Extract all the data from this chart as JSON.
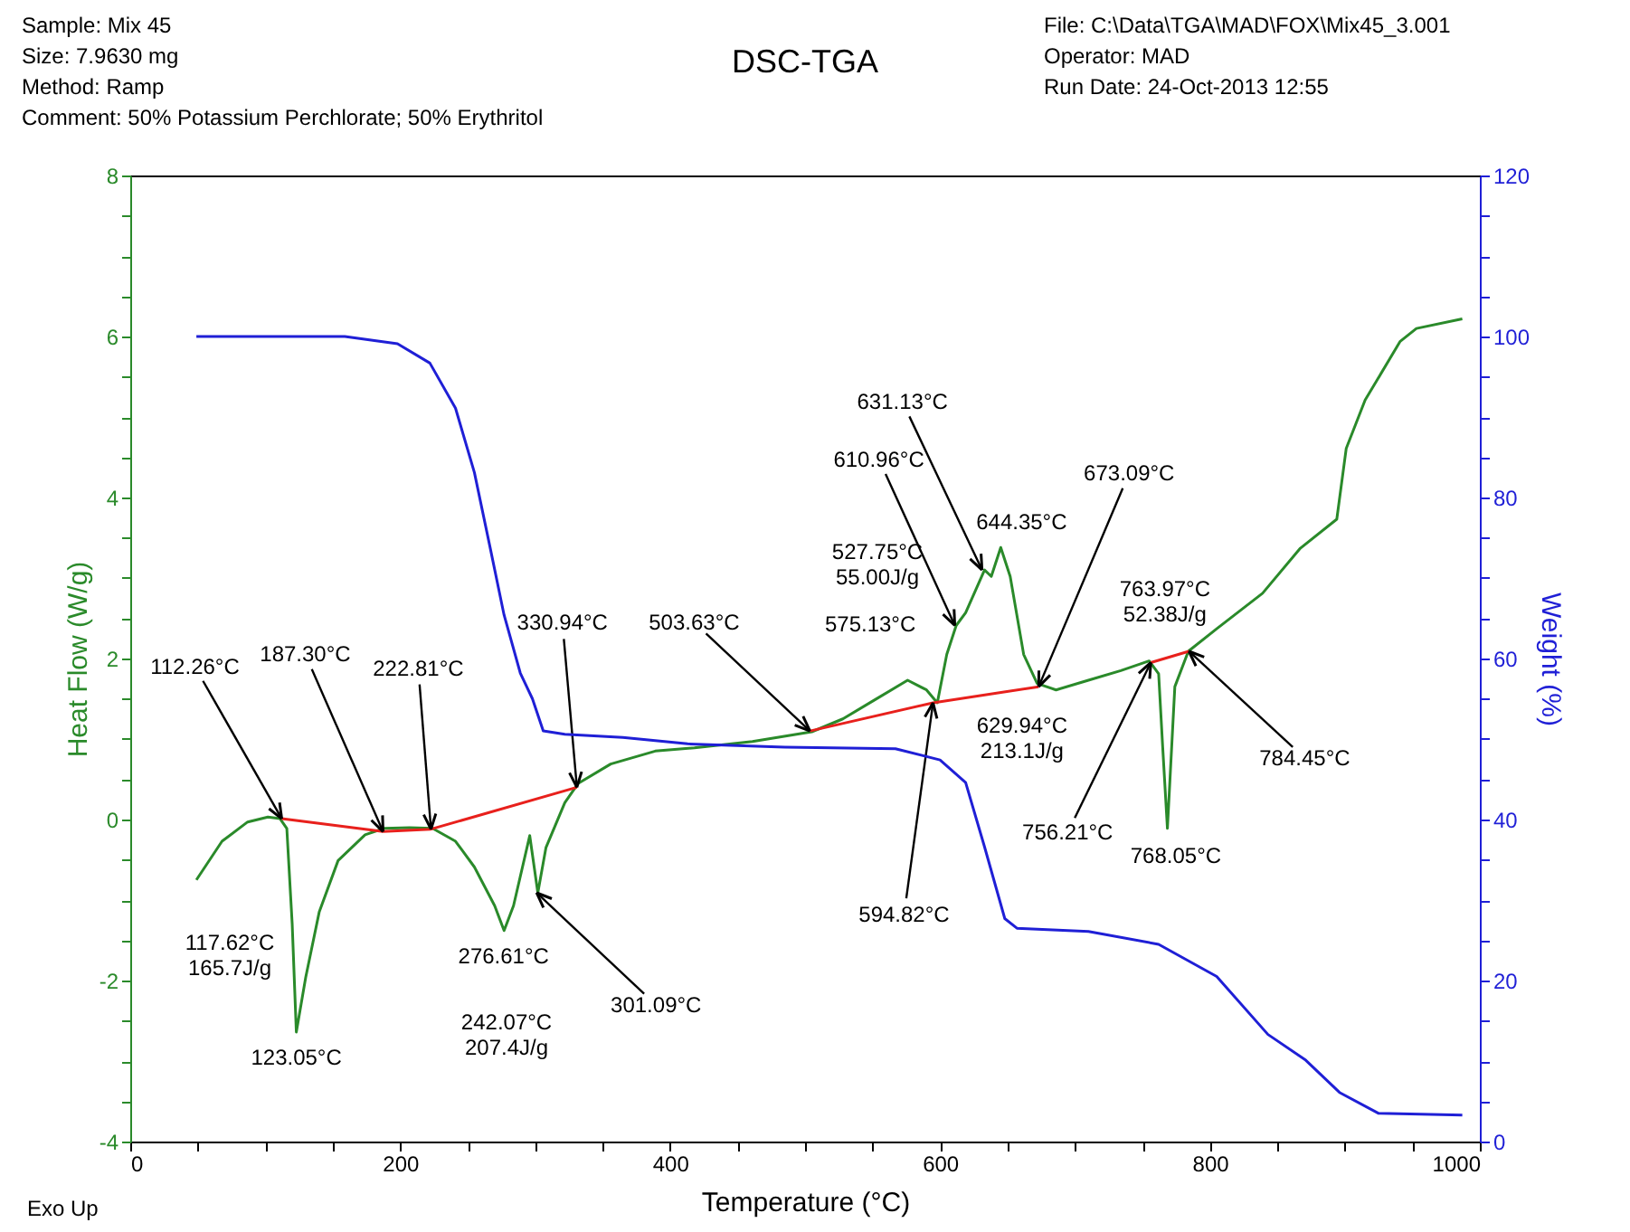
{
  "chart_data": {
    "type": "line",
    "title": "DSC-TGA",
    "xlabel": "Temperature (°C)",
    "ylabel": "Heat Flow (W/g)",
    "y2label": "Weight (%)",
    "xlim": [
      0,
      1000
    ],
    "ylim": [
      -4,
      8
    ],
    "y2lim": [
      0,
      120
    ],
    "xticks": [
      0,
      {
        "value": 50,
        "label": null
      },
      {
        "value": 100,
        "label": null
      },
      {
        "value": 150,
        "label": null
      },
      200,
      {
        "value": 250,
        "label": null
      },
      {
        "value": 300,
        "label": null
      },
      {
        "value": 350,
        "label": null
      },
      400,
      {
        "value": 450,
        "label": null
      },
      {
        "value": 500,
        "label": null
      },
      {
        "value": 550,
        "label": null
      },
      600,
      {
        "value": 650,
        "label": null
      },
      {
        "value": 700,
        "label": null
      },
      {
        "value": 750,
        "label": null
      },
      800,
      {
        "value": 850,
        "label": null
      },
      {
        "value": 900,
        "label": null
      },
      {
        "value": 950,
        "label": null
      },
      1000
    ],
    "yticks": [
      -4,
      {
        "value": -3.5,
        "label": null
      },
      {
        "value": -3,
        "label": null
      },
      {
        "value": -2.5,
        "label": null
      },
      -2,
      {
        "value": -1.5,
        "label": null
      },
      {
        "value": -1,
        "label": null
      },
      {
        "value": -0.5,
        "label": null
      },
      0,
      {
        "value": 0.5,
        "label": null
      },
      {
        "value": 1,
        "label": null
      },
      {
        "value": 1.5,
        "label": null
      },
      2,
      {
        "value": 2.5,
        "label": null
      },
      {
        "value": 3,
        "label": null
      },
      {
        "value": 3.5,
        "label": null
      },
      4,
      {
        "value": 4.5,
        "label": null
      },
      {
        "value": 5,
        "label": null
      },
      {
        "value": 5.5,
        "label": null
      },
      6,
      {
        "value": 6.5,
        "label": null
      },
      {
        "value": 7,
        "label": null
      },
      {
        "value": 7.5,
        "label": null
      },
      8
    ],
    "y2ticks": [
      0,
      {
        "value": 5,
        "label": null
      },
      {
        "value": 10,
        "label": null
      },
      {
        "value": 15,
        "label": null
      },
      20,
      {
        "value": 25,
        "label": null
      },
      {
        "value": 30,
        "label": null
      },
      {
        "value": 35,
        "label": null
      },
      40,
      {
        "value": 45,
        "label": null
      },
      {
        "value": 50,
        "label": null
      },
      {
        "value": 55,
        "label": null
      },
      60,
      {
        "value": 65,
        "label": null
      },
      {
        "value": 70,
        "label": null
      },
      {
        "value": 75,
        "label": null
      },
      80,
      {
        "value": 85,
        "label": null
      },
      {
        "value": 90,
        "label": null
      },
      {
        "value": 95,
        "label": null
      },
      100,
      {
        "value": 105,
        "label": null
      },
      {
        "value": 110,
        "label": null
      },
      {
        "value": 115,
        "label": null
      },
      120
    ],
    "grid": false,
    "marker": "none",
    "line_style": "solid",
    "series": [
      {
        "color": "#2a8a2a",
        "x": [
          49,
          68,
          87,
          102,
          111,
          116,
          120,
          123.05,
          130,
          140,
          154,
          174,
          188,
          207,
          224,
          241,
          255,
          270,
          277,
          284,
          296,
          302,
          308,
          322,
          332,
          356,
          389,
          418,
          461,
          505,
          528,
          552,
          576,
          590,
          598,
          605,
          612,
          619,
          633,
          638,
          645,
          652,
          662,
          672,
          686,
          710,
          734,
          755,
          762,
          765,
          768.5,
          774,
          784,
          805,
          839,
          867,
          894,
          901,
          915,
          941,
          953,
          987
        ],
        "values": [
          -0.75,
          -0.27,
          -0.03,
          0.03,
          0.01,
          -0.11,
          -1.3,
          -2.64,
          -1.96,
          -1.15,
          -0.51,
          -0.19,
          -0.11,
          -0.1,
          -0.11,
          -0.27,
          -0.59,
          -1.07,
          -1.38,
          -1.07,
          -0.2,
          -0.91,
          -0.35,
          0.21,
          0.45,
          0.69,
          0.85,
          0.89,
          0.97,
          1.09,
          1.25,
          1.49,
          1.73,
          1.61,
          1.45,
          2.05,
          2.41,
          2.57,
          3.1,
          3.02,
          3.38,
          3.02,
          2.05,
          1.69,
          1.61,
          1.73,
          1.85,
          1.97,
          1.81,
          0.9,
          -0.11,
          1.65,
          2.09,
          2.37,
          2.81,
          3.37,
          3.73,
          4.61,
          5.21,
          5.94,
          6.1,
          6.22
        ]
      },
      {
        "color": "#e8201c",
        "x": [
          112.26,
          187.3,
          222.81,
          330.94,
          420,
          503.63,
          594.82,
          673.09,
          720,
          756.21,
          784.45
        ],
        "values": [
          0.01,
          -0.15,
          -0.12,
          0.4,
          null,
          1.1,
          1.45,
          1.65,
          null,
          1.95,
          2.09
        ]
      },
      {
        "color": "#1f1fd6",
        "axis": "y2",
        "x": [
          49,
          159,
          198,
          222,
          241,
          255,
          267,
          277,
          289,
          298,
          306,
          322,
          365,
          413,
          485,
          567,
          600,
          619,
          633,
          648,
          657,
          710,
          762,
          805,
          843,
          871,
          896,
          925,
          987
        ],
        "values": [
          100,
          100,
          99.1,
          96.7,
          91.1,
          83.1,
          73.5,
          65.4,
          58.2,
          55.0,
          51.0,
          50.6,
          50.2,
          49.4,
          49.0,
          48.8,
          47.4,
          44.6,
          36.6,
          27.7,
          26.5,
          26.1,
          24.5,
          20.5,
          13.3,
          10.1,
          6.1,
          3.5,
          3.3
        ]
      }
    ],
    "annotations": [
      "Sample: Mix 45",
      "Size:  7.9630 mg",
      "Method: Ramp",
      "Comment: 50% Potassium Perchlorate; 50% Erythritol",
      "File: C:\\Data\\TGA\\MAD\\FOX\\Mix45_3.001",
      "Operator: MAD",
      "Run Date: 24-Oct-2013 12:55",
      "Exo Up",
      "117.62°C\n165.7J/g",
      "242.07°C\n207.4J/g",
      "527.75°C\n55.00J/g",
      {
        "text": "112.26°C",
        "x": 112.26,
        "y": 0.01
      },
      {
        "text": "187.30°C",
        "x": 187.3,
        "y": -0.15
      },
      {
        "text": "222.81°C",
        "x": 222.81,
        "y": -0.12
      },
      {
        "text": "330.94°C",
        "x": 330.94,
        "y": 0.4
      },
      {
        "text": "503.63°C",
        "x": 503.63,
        "y": 1.1
      },
      {
        "text": "123.05°C",
        "x": 123.05,
        "y": -2.64
      },
      {
        "text": "276.61°C",
        "x": 276.61,
        "y": -1.38
      },
      {
        "text": "301.09°C",
        "x": 301.09,
        "y": -0.91
      },
      {
        "text": "575.13°C",
        "x": 575.13,
        "y": 1.75
      },
      {
        "text": "610.96°C",
        "x": 610.96,
        "y": 2.41
      },
      {
        "text": "631.13°C",
        "x": 631.13,
        "y": 3.1
      },
      {
        "text": "644.35°C",
        "x": 644.35,
        "y": 3.38
      },
      {
        "text": "673.09°C",
        "x": 673.09,
        "y": 1.65
      },
      {
        "text": "629.94°C\n213.1J/g",
        "x": 629.94,
        "y": 1.55
      },
      {
        "text": "594.82°C",
        "x": 594.82,
        "y": 1.45
      },
      {
        "text": "763.97°C\n52.38J/g",
        "x": 763.97,
        "y": 1.97
      },
      {
        "text": "756.21°C",
        "x": 756.21,
        "y": 1.95
      },
      {
        "text": "768.05°C",
        "x": 768.05,
        "y": -0.11
      },
      {
        "text": "784.45°C",
        "x": 784.45,
        "y": 2.09
      }
    ]
  }
}
